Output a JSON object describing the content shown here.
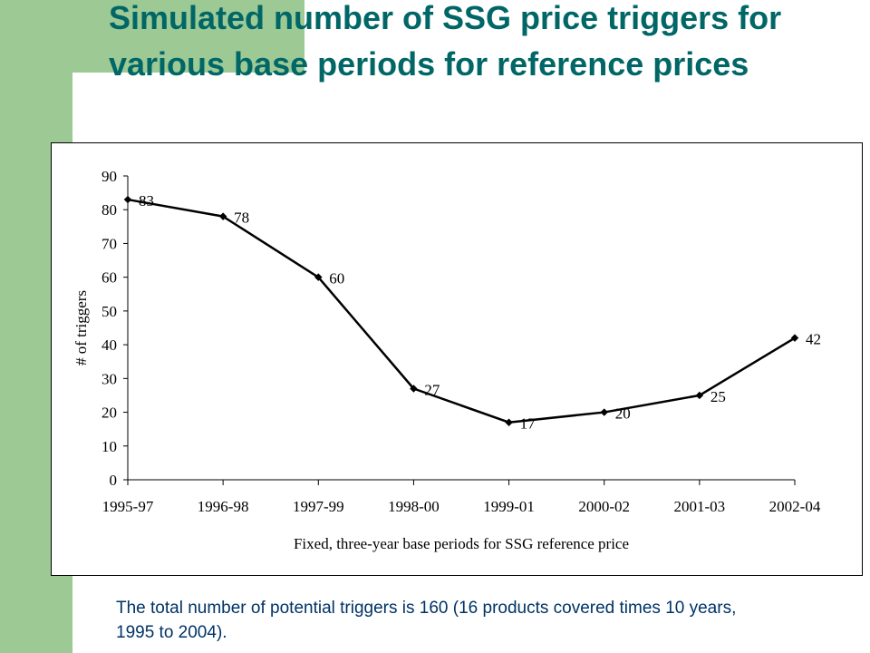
{
  "slide": {
    "title": "Simulated number of SSG price triggers for various base periods for reference prices",
    "note": "The total number of potential triggers is 160 (16 products covered times 10 years, 1995 to 2004).",
    "accent_color": "#9dc995",
    "title_color": "#006666",
    "note_color": "#003366"
  },
  "chart_data": {
    "type": "line",
    "title": "",
    "xlabel": "Fixed, three-year base periods for SSG reference price",
    "ylabel": "# of triggers",
    "categories": [
      "1995-97",
      "1996-98",
      "1997-99",
      "1998-00",
      "1999-01",
      "2000-02",
      "2001-03",
      "2002-04"
    ],
    "series": [
      {
        "values": [
          83,
          78,
          60,
          27,
          17,
          20,
          25,
          42
        ],
        "color": "#000000"
      }
    ],
    "data_labels": [
      "83",
      "78",
      "60",
      "27",
      "17",
      "20",
      "25",
      "42"
    ],
    "ylim": [
      0,
      90
    ],
    "yticks": [
      0,
      10,
      20,
      30,
      40,
      50,
      60,
      70,
      80,
      90
    ],
    "grid": false,
    "legend": "none"
  }
}
